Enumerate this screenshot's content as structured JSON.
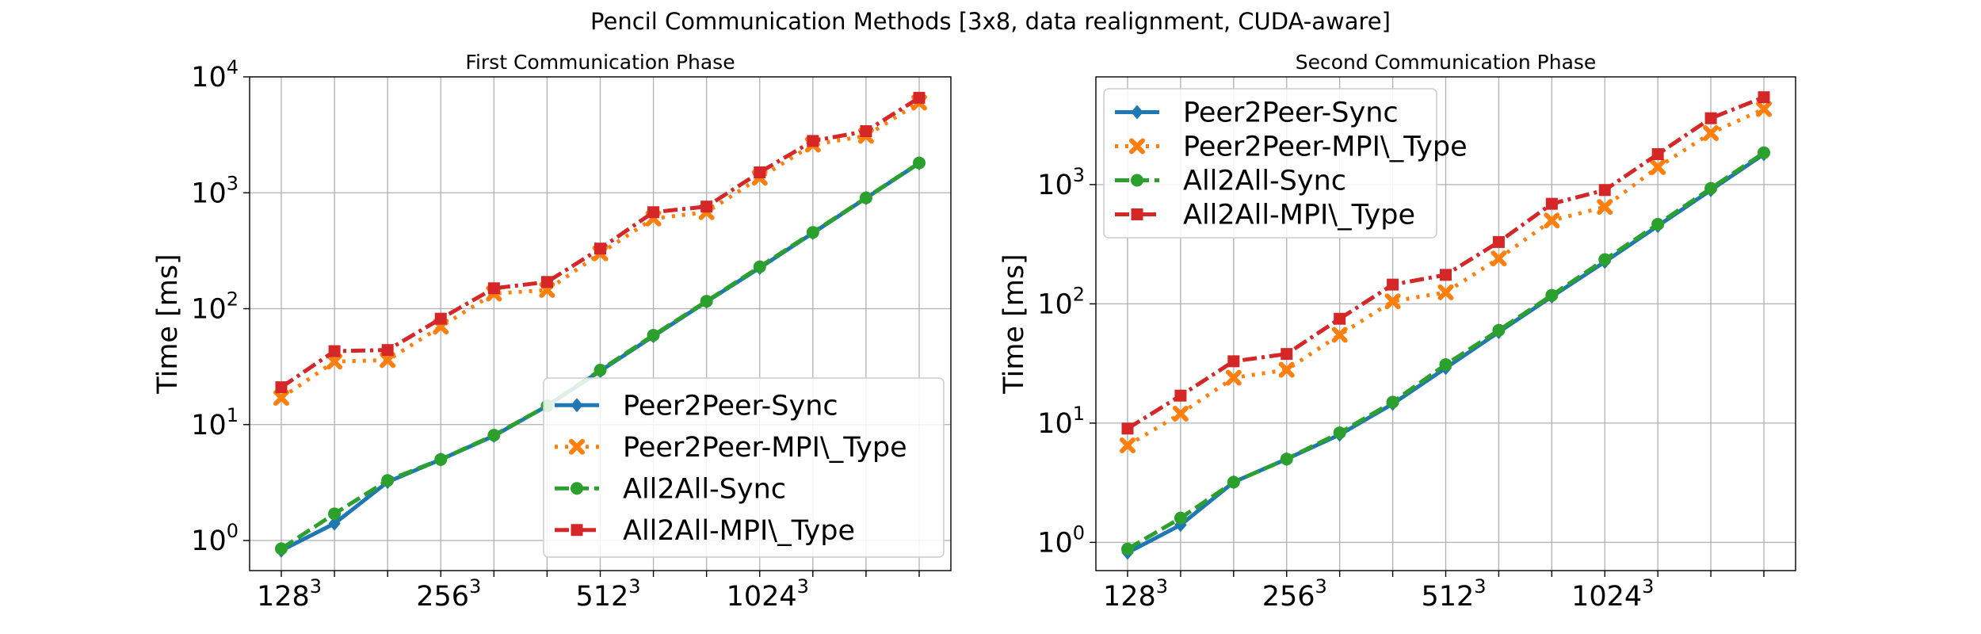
{
  "figure": {
    "suptitle": "Pencil Communication Methods [3x8, data realignment, CUDA-aware]"
  },
  "colors": {
    "Peer2Peer-Sync": "#1f77b4",
    "Peer2Peer-MPI\\_Type": "#ff7f0e",
    "All2All-Sync": "#2ca02c",
    "All2All-MPI\\_Type": "#d62728"
  },
  "chart_data": [
    {
      "type": "line",
      "title": "First Communication Phase",
      "xlabel": "",
      "ylabel": "Time [ms]",
      "yscale": "log",
      "ylim": [
        0.55,
        10000
      ],
      "grid": true,
      "legend_position": "lower-right",
      "x": [
        128,
        160,
        192,
        256,
        320,
        384,
        512,
        640,
        768,
        1024,
        1280,
        1536,
        2048
      ],
      "x_ticks": [
        {
          "base": "128",
          "exp": "3"
        },
        {
          "base": "256",
          "exp": "3"
        },
        {
          "base": "512",
          "exp": "3"
        },
        {
          "base": "1024",
          "exp": "3"
        }
      ],
      "y_ticks": [
        {
          "base": "10",
          "exp": "0"
        },
        {
          "base": "10",
          "exp": "1"
        },
        {
          "base": "10",
          "exp": "2"
        },
        {
          "base": "10",
          "exp": "3"
        },
        {
          "base": "10",
          "exp": "4"
        }
      ],
      "series": [
        {
          "name": "Peer2Peer-Sync",
          "values": [
            0.82,
            1.4,
            3.2,
            5.0,
            8.0,
            14.5,
            29.0,
            58.0,
            115.0,
            225.0,
            450.0,
            900.0,
            1800.0
          ]
        },
        {
          "name": "Peer2Peer-MPI\\_Type",
          "values": [
            17.0,
            35.0,
            36.0,
            70.0,
            135.0,
            145.0,
            300.0,
            600.0,
            680.0,
            1350.0,
            2600.0,
            3100.0,
            6000.0
          ]
        },
        {
          "name": "All2All-Sync",
          "values": [
            0.85,
            1.7,
            3.3,
            5.0,
            8.1,
            14.5,
            29.5,
            59.0,
            116.0,
            230.0,
            455.0,
            905.0,
            1810.0
          ]
        },
        {
          "name": "All2All-MPI\\_Type",
          "values": [
            21.0,
            43.0,
            44.0,
            82.0,
            150.0,
            170.0,
            330.0,
            680.0,
            760.0,
            1500.0,
            2800.0,
            3400.0,
            6600.0
          ]
        }
      ]
    },
    {
      "type": "line",
      "title": "Second Communication Phase",
      "xlabel": "",
      "ylabel": "Time [ms]",
      "yscale": "log",
      "ylim": [
        0.58,
        8000
      ],
      "grid": true,
      "legend_position": "upper-left",
      "x": [
        128,
        160,
        192,
        256,
        320,
        384,
        512,
        640,
        768,
        1024,
        1280,
        1536,
        2048
      ],
      "x_ticks": [
        {
          "base": "128",
          "exp": "3"
        },
        {
          "base": "256",
          "exp": "3"
        },
        {
          "base": "512",
          "exp": "3"
        },
        {
          "base": "1024",
          "exp": "3"
        }
      ],
      "y_ticks": [
        {
          "base": "10",
          "exp": "0"
        },
        {
          "base": "10",
          "exp": "1"
        },
        {
          "base": "10",
          "exp": "2"
        },
        {
          "base": "10",
          "exp": "3"
        }
      ],
      "series": [
        {
          "name": "Peer2Peer-Sync",
          "values": [
            0.82,
            1.4,
            3.2,
            5.0,
            8.0,
            14.5,
            29.0,
            58.0,
            115.0,
            225.0,
            450.0,
            900.0,
            1800.0
          ]
        },
        {
          "name": "Peer2Peer-MPI\\_Type",
          "values": [
            6.5,
            12.0,
            24.0,
            28.0,
            55.0,
            105.0,
            125.0,
            240.0,
            500.0,
            650.0,
            1400.0,
            2700.0,
            4300.0
          ]
        },
        {
          "name": "All2All-Sync",
          "values": [
            0.88,
            1.6,
            3.2,
            5.0,
            8.3,
            15.0,
            31.0,
            60.0,
            118.0,
            235.0,
            465.0,
            930.0,
            1850.0
          ]
        },
        {
          "name": "All2All-MPI\\_Type",
          "values": [
            9.0,
            17.0,
            33.0,
            38.0,
            75.0,
            145.0,
            175.0,
            330.0,
            690.0,
            900.0,
            1800.0,
            3600.0,
            5400.0
          ]
        }
      ]
    }
  ]
}
